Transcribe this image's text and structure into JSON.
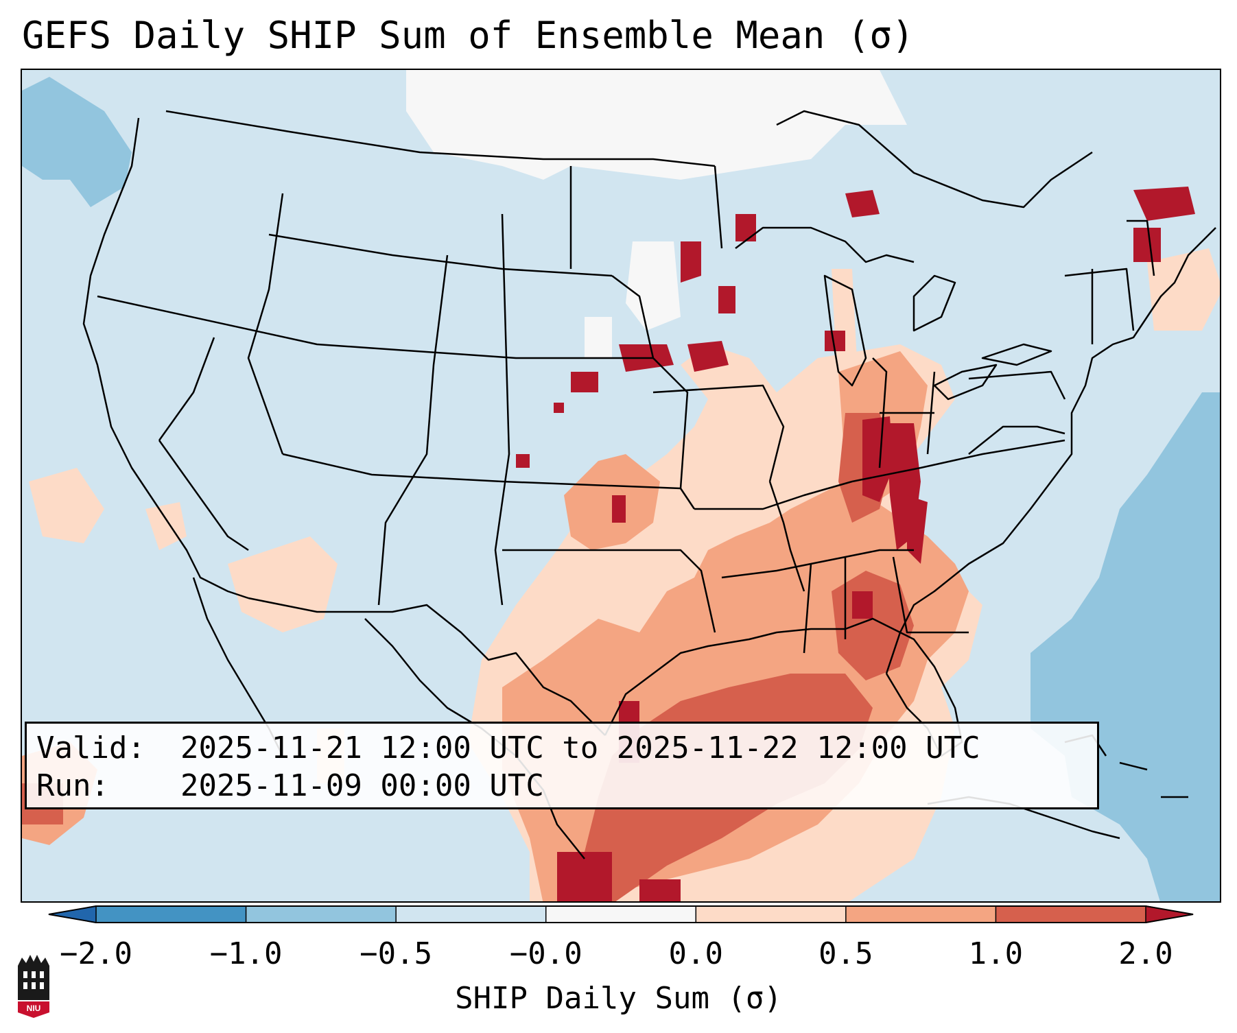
{
  "title": "GEFS Daily SHIP Sum of Ensemble Mean (σ)",
  "info": {
    "valid_label": "Valid:",
    "valid_value": "2025-11-21 12:00 UTC to 2025-11-22 12:00 UTC",
    "run_label": "Run:",
    "run_value": "2025-11-09 00:00 UTC"
  },
  "colorbar": {
    "label": "SHIP Daily Sum (σ)",
    "ticks": [
      "−2.0",
      "−1.0",
      "−0.5",
      "−0.0",
      "0.0",
      "0.5",
      "1.0",
      "2.0"
    ],
    "colors": {
      "under": "#2166ac",
      "bin_-2_-1": "#4393c3",
      "bin_-1_-0.5": "#92c5de",
      "bin_-0.5_0": "#d1e5f0",
      "bin_0_0": "#f7f7f7",
      "bin_0_0.5": "#fddbc7",
      "bin_0.5_1": "#f4a582",
      "bin_1_2": "#d6604d",
      "over": "#b2182b"
    }
  },
  "logo": {
    "text": "NIU",
    "icon": "niu-logo-icon"
  }
}
